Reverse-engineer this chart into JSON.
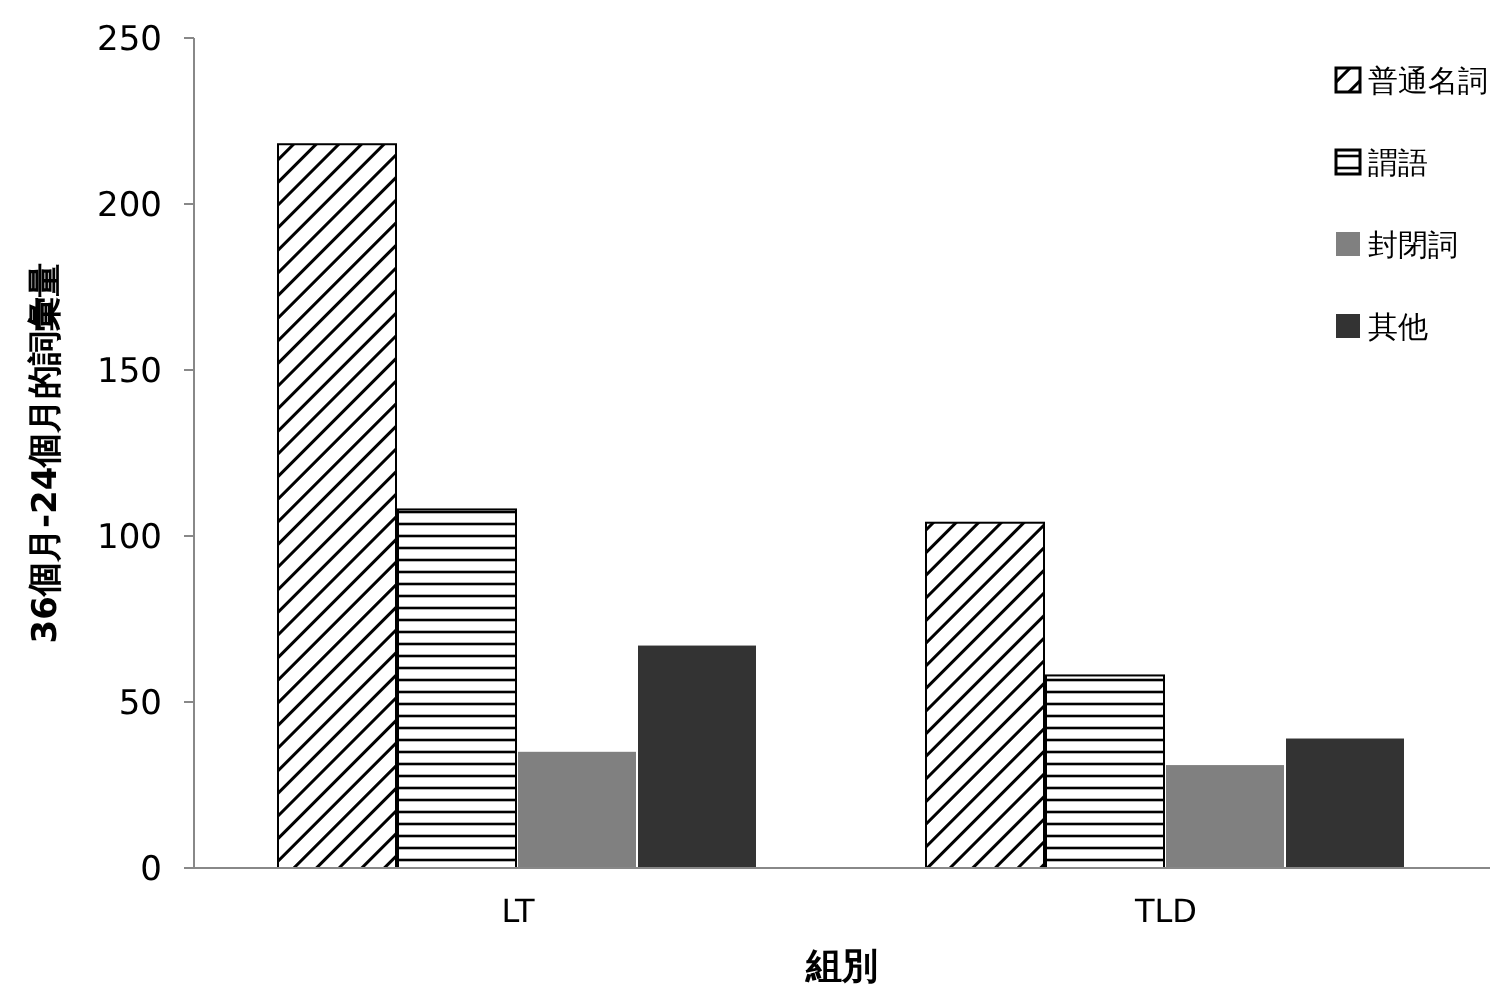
{
  "chart_data": {
    "type": "bar",
    "xlabel": "組別",
    "ylabel": "36個月-24個月的詞彙量",
    "categories": [
      "LT",
      "TLD"
    ],
    "series": [
      {
        "name": "普通名詞",
        "color": "#000000",
        "values": [
          218,
          104
        ]
      },
      {
        "name": "謂語",
        "color": "#000000",
        "values": [
          108,
          58
        ]
      },
      {
        "name": "封閉詞",
        "color": "#808080",
        "values": [
          35,
          31
        ]
      },
      {
        "name": "其他",
        "color": "#333333",
        "values": [
          67,
          39
        ]
      }
    ],
    "ylim": [
      0,
      250
    ],
    "yticks": [
      0,
      50,
      100,
      150,
      200,
      250
    ],
    "grid": false,
    "legend": "top right"
  }
}
